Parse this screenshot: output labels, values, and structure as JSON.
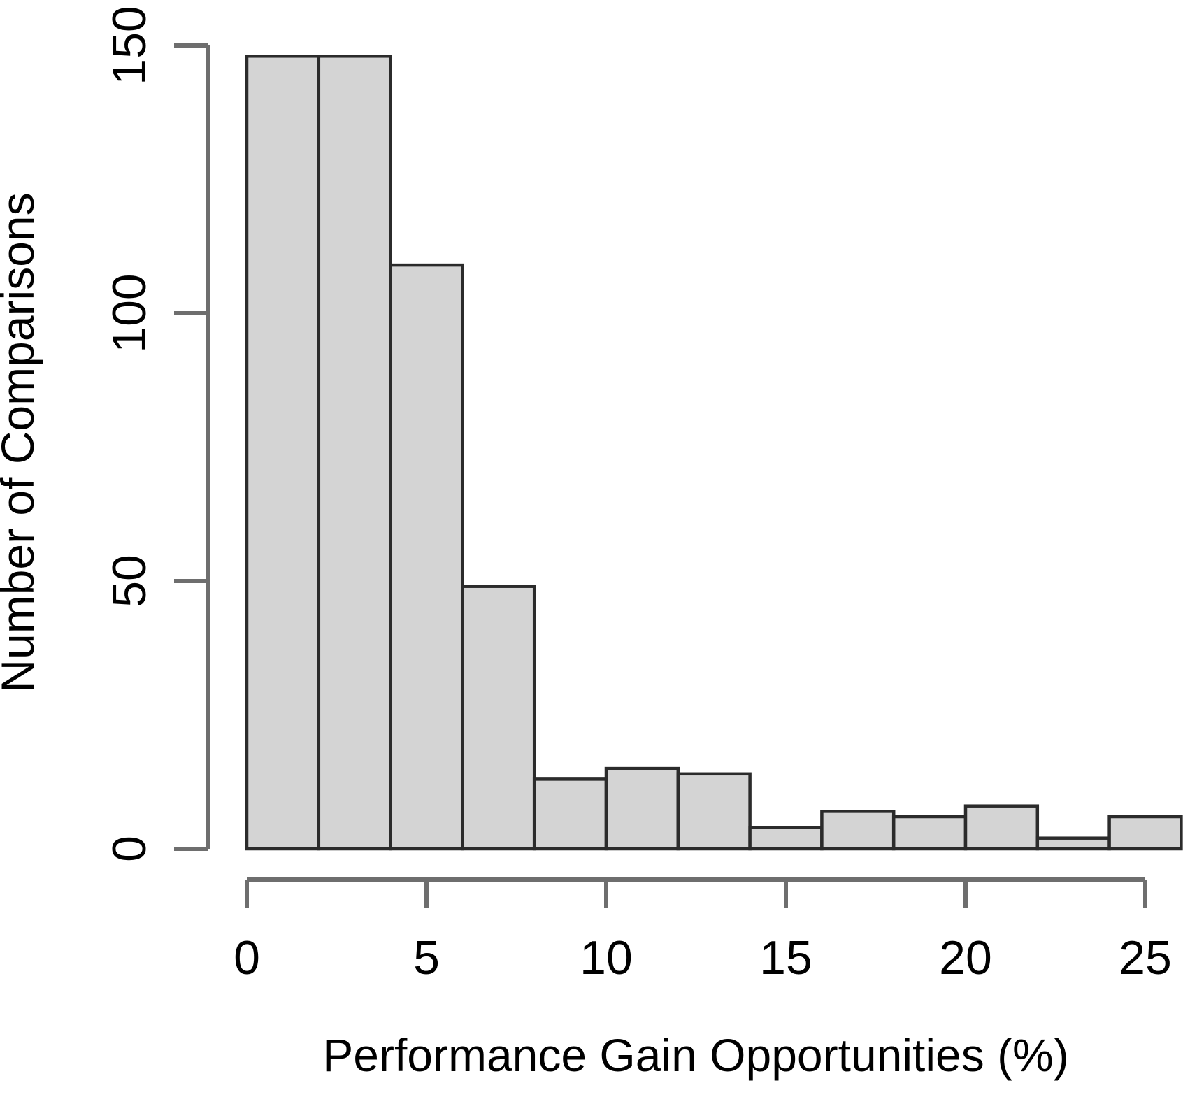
{
  "chart_data": {
    "type": "bar",
    "subtype": "histogram",
    "title": "",
    "xlabel": "Performance Gain Opportunities (%)",
    "ylabel": "Number of Comparisons",
    "bin_edges": [
      0,
      2,
      4,
      6,
      8,
      10,
      12,
      14,
      16,
      18,
      20,
      22,
      24,
      26
    ],
    "counts": [
      148,
      148,
      109,
      49,
      13,
      15,
      14,
      4,
      7,
      6,
      8,
      2,
      6
    ],
    "x_ticks": [
      0,
      5,
      10,
      15,
      20,
      25
    ],
    "y_ticks": [
      0,
      50,
      100,
      150
    ],
    "xlim": [
      0,
      26
    ],
    "ylim": [
      0,
      150
    ],
    "grid": false,
    "legend": null,
    "y_tick_label_rotation": 90,
    "colors": {
      "bar_fill": "#d4d4d4",
      "bar_border": "#2b2b2b",
      "axis_line": "#6e6e6e",
      "tick_text": "#000000",
      "background": "#ffffff"
    }
  }
}
